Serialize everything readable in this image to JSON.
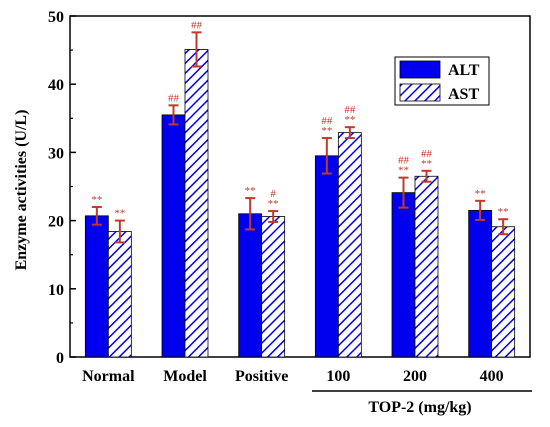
{
  "chart_data": {
    "type": "bar",
    "title": "",
    "xlabel": "",
    "ylabel": "Enzyme activities (U/L)",
    "ylim": [
      0,
      50
    ],
    "yticks": [
      0,
      10,
      20,
      30,
      40,
      50
    ],
    "categories": [
      "Normal",
      "Model",
      "Positive",
      "100",
      "200",
      "400"
    ],
    "group_label": "TOP-2 (mg/kg)",
    "series": [
      {
        "name": "ALT",
        "values": [
          20.7,
          35.5,
          21.0,
          29.5,
          24.1,
          21.5
        ],
        "errors": [
          1.3,
          1.4,
          2.3,
          2.6,
          2.2,
          1.4
        ],
        "annotations": [
          [
            "**"
          ],
          [
            "##"
          ],
          [
            "**"
          ],
          [
            "##",
            "**"
          ],
          [
            "##",
            "**"
          ],
          [
            "**"
          ]
        ]
      },
      {
        "name": "AST",
        "values": [
          18.4,
          45.1,
          20.6,
          32.9,
          26.5,
          19.1
        ],
        "errors": [
          1.6,
          2.5,
          0.8,
          0.8,
          0.8,
          1.1
        ],
        "annotations": [
          [
            "**"
          ],
          [
            "##"
          ],
          [
            "#",
            "**"
          ],
          [
            "##",
            "**"
          ],
          [
            "##",
            "**"
          ],
          [
            "**"
          ]
        ]
      }
    ],
    "colors": {
      "ALT": "#0000ee",
      "AST": "#0000ee",
      "error": "#c0392b",
      "annotation": "#c0392b"
    },
    "legend_position": "top-right",
    "grid": false
  }
}
